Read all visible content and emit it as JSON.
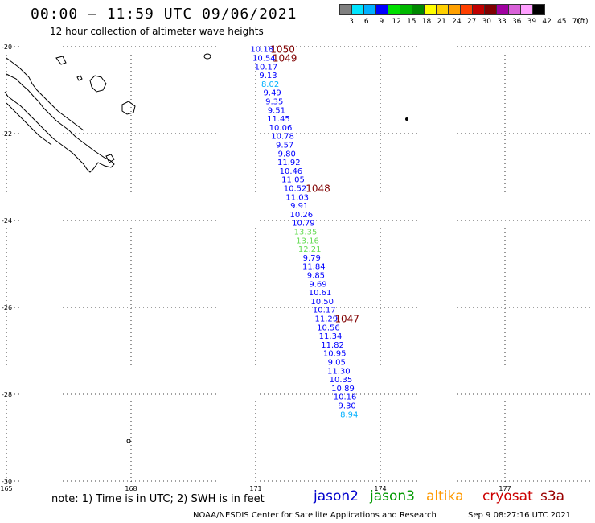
{
  "header": {
    "title": "00:00 – 11:59 UTC 09/06/2021",
    "subtitle": "12 hour collection of altimeter wave heights"
  },
  "color_scale": {
    "labels": [
      "3",
      "6",
      "9",
      "12",
      "15",
      "18",
      "21",
      "24",
      "27",
      "30",
      "33",
      "36",
      "39",
      "42",
      "45",
      "70"
    ],
    "unit": "(ft)",
    "colors": [
      "#808080",
      "#00e5ff",
      "#00b0ff",
      "#0000ff",
      "#00e000",
      "#00b800",
      "#008800",
      "#ffff00",
      "#ffd000",
      "#ffa000",
      "#ff4000",
      "#c00000",
      "#800000",
      "#a000a0",
      "#d860d8",
      "#ffa0ff",
      "#000000"
    ]
  },
  "map": {
    "lat_labels": [
      "-20",
      "-22",
      "-24",
      "-26",
      "-28",
      "-30"
    ],
    "lon_labels": [
      "165",
      "168",
      "171",
      "174",
      "177"
    ]
  },
  "observations": [
    {
      "lon": 171.15,
      "lat": -20.05,
      "value": "10.18",
      "color": "#0000ff"
    },
    {
      "lon": 171.2,
      "lat": -20.25,
      "value": "10.54",
      "color": "#0000ff"
    },
    {
      "lon": 171.25,
      "lat": -20.45,
      "value": "10.17",
      "color": "#0000ff"
    },
    {
      "lon": 171.3,
      "lat": -20.65,
      "value": "9.13",
      "color": "#0000ff"
    },
    {
      "lon": 171.35,
      "lat": -20.85,
      "value": "8.02",
      "color": "#00b0ff"
    },
    {
      "lon": 171.4,
      "lat": -21.05,
      "value": "9.49",
      "color": "#0000ff"
    },
    {
      "lon": 171.45,
      "lat": -21.25,
      "value": "9.35",
      "color": "#0000ff"
    },
    {
      "lon": 171.5,
      "lat": -21.45,
      "value": "9.51",
      "color": "#0000ff"
    },
    {
      "lon": 171.55,
      "lat": -21.65,
      "value": "11.45",
      "color": "#0000ff"
    },
    {
      "lon": 171.6,
      "lat": -21.85,
      "value": "10.06",
      "color": "#0000ff"
    },
    {
      "lon": 171.65,
      "lat": -22.05,
      "value": "10.78",
      "color": "#0000ff"
    },
    {
      "lon": 171.7,
      "lat": -22.25,
      "value": "9.57",
      "color": "#0000ff"
    },
    {
      "lon": 171.75,
      "lat": -22.45,
      "value": "9.80",
      "color": "#0000ff"
    },
    {
      "lon": 171.8,
      "lat": -22.65,
      "value": "11.92",
      "color": "#0000ff"
    },
    {
      "lon": 171.85,
      "lat": -22.85,
      "value": "10.46",
      "color": "#0000ff"
    },
    {
      "lon": 171.9,
      "lat": -23.05,
      "value": "11.05",
      "color": "#0000ff"
    },
    {
      "lon": 171.95,
      "lat": -23.25,
      "value": "10.52",
      "color": "#0000ff"
    },
    {
      "lon": 172.0,
      "lat": -23.45,
      "value": "11.03",
      "color": "#0000ff"
    },
    {
      "lon": 172.05,
      "lat": -23.65,
      "value": "9.91",
      "color": "#0000ff"
    },
    {
      "lon": 172.1,
      "lat": -23.85,
      "value": "10.26",
      "color": "#0000ff"
    },
    {
      "lon": 172.15,
      "lat": -24.05,
      "value": "10.79",
      "color": "#0000ff"
    },
    {
      "lon": 172.2,
      "lat": -24.25,
      "value": "13.35",
      "color": "#66dd55"
    },
    {
      "lon": 172.25,
      "lat": -24.45,
      "value": "13.16",
      "color": "#66dd55"
    },
    {
      "lon": 172.3,
      "lat": -24.65,
      "value": "12.21",
      "color": "#66dd55"
    },
    {
      "lon": 172.35,
      "lat": -24.85,
      "value": "9.79",
      "color": "#0000ff"
    },
    {
      "lon": 172.4,
      "lat": -25.05,
      "value": "11.84",
      "color": "#0000ff"
    },
    {
      "lon": 172.45,
      "lat": -25.25,
      "value": "9.85",
      "color": "#0000ff"
    },
    {
      "lon": 172.5,
      "lat": -25.45,
      "value": "9.69",
      "color": "#0000ff"
    },
    {
      "lon": 172.55,
      "lat": -25.65,
      "value": "10.61",
      "color": "#0000ff"
    },
    {
      "lon": 172.6,
      "lat": -25.85,
      "value": "10.50",
      "color": "#0000ff"
    },
    {
      "lon": 172.65,
      "lat": -26.05,
      "value": "10.17",
      "color": "#0000ff"
    },
    {
      "lon": 172.7,
      "lat": -26.25,
      "value": "11.29",
      "color": "#0000ff"
    },
    {
      "lon": 172.75,
      "lat": -26.45,
      "value": "10.56",
      "color": "#0000ff"
    },
    {
      "lon": 172.8,
      "lat": -26.65,
      "value": "11.34",
      "color": "#0000ff"
    },
    {
      "lon": 172.85,
      "lat": -26.85,
      "value": "11.82",
      "color": "#0000ff"
    },
    {
      "lon": 172.9,
      "lat": -27.05,
      "value": "10.95",
      "color": "#0000ff"
    },
    {
      "lon": 172.95,
      "lat": -27.25,
      "value": "9.05",
      "color": "#0000ff"
    },
    {
      "lon": 173.0,
      "lat": -27.45,
      "value": "11.30",
      "color": "#0000ff"
    },
    {
      "lon": 173.05,
      "lat": -27.65,
      "value": "10.35",
      "color": "#0000ff"
    },
    {
      "lon": 173.1,
      "lat": -27.85,
      "value": "10.89",
      "color": "#0000ff"
    },
    {
      "lon": 173.15,
      "lat": -28.05,
      "value": "10.16",
      "color": "#0000ff"
    },
    {
      "lon": 173.2,
      "lat": -28.25,
      "value": "9.30",
      "color": "#0000ff"
    },
    {
      "lon": 173.25,
      "lat": -28.45,
      "value": "8.94",
      "color": "#00b0ff"
    }
  ],
  "time_labels": [
    {
      "lon": 171.65,
      "lat": -20.05,
      "text": "1050"
    },
    {
      "lon": 171.7,
      "lat": -20.25,
      "text": "1049"
    },
    {
      "lon": 172.5,
      "lat": -23.25,
      "text": "1048"
    },
    {
      "lon": 173.2,
      "lat": -26.25,
      "text": "1047"
    }
  ],
  "footer": {
    "note": "note:  1) Time is in UTC;  2) SWH is in feet",
    "missions": [
      {
        "name": "jason2",
        "color": "#0000cc"
      },
      {
        "name": "jason3",
        "color": "#009900"
      },
      {
        "name": "altika",
        "color": "#ff9900"
      },
      {
        "name": "cryosat",
        "color": "#cc0000"
      },
      {
        "name": "s3a",
        "color": "#990000"
      }
    ],
    "credit": "NOAA/NESDIS Center for Satellite Applications and Research",
    "date": "Sep  9 08:27:16 UTC 2021"
  }
}
